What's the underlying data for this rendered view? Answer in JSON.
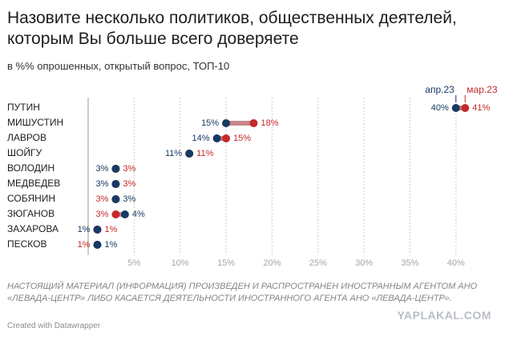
{
  "title": "Назовите несколько политиков, общественных деятелей, которым Вы больше всего доверяете",
  "subtitle": "в %% опрошенных, открытый вопрос, ТОП-10",
  "note": "НАСТОЯЩИЙ МАТЕРИАЛ (ИНФОРМАЦИЯ) ПРОИЗВЕДЕН И РАСПРОСТРАНЕН ИНОСТРАННЫМ АГЕНТОМ АНО «ЛЕВАДА-ЦЕНТР» ЛИБО КАСАЕТСЯ ДЕЯТЕЛЬНОСТИ ИНОСТРАННОГО АГЕНТА АНО «ЛЕВАДА-ЦЕНТР».",
  "credit": "Created with Datawrapper",
  "watermark": "YAPLAKAL.COM",
  "colors": {
    "apr": "#163a63",
    "mar": "#c42a2a",
    "connector": "#c9858b",
    "grid": "#cfcfcf",
    "tick_text": "#a6a6a6"
  },
  "chart_data": {
    "type": "scatter",
    "subtype": "dot-range",
    "categories": [
      "ПУТИН",
      "МИШУСТИН",
      "ЛАВРОВ",
      "ШОЙГУ",
      "ВОЛОДИН",
      "МЕДВЕДЕВ",
      "СОБЯНИН",
      "ЗЮГАНОВ",
      "ЗАХАРОВА",
      "ПЕСКОВ"
    ],
    "series": [
      {
        "name": "апр.23",
        "values": [
          40,
          15,
          14,
          11,
          3,
          3,
          3,
          4,
          1,
          1
        ]
      },
      {
        "name": "мар.23",
        "values": [
          41,
          18,
          15,
          11,
          3,
          3,
          3,
          3,
          1,
          1
        ]
      }
    ],
    "value_labels": {
      "апр.23": [
        "40%",
        "15%",
        "14%",
        "11%",
        "3%",
        "3%",
        "3%",
        "4%",
        "1%",
        "1%"
      ],
      "мар.23": [
        "41%",
        "18%",
        "15%",
        "11%",
        "3%",
        "3%",
        "3%",
        "3%",
        "1%",
        "1%"
      ]
    },
    "x_ticks": [
      5,
      10,
      15,
      20,
      25,
      30,
      35,
      40
    ],
    "x_tick_labels": [
      "5%",
      "10%",
      "15%",
      "20%",
      "25%",
      "30%",
      "35%",
      "40%"
    ],
    "xlim": [
      0,
      42
    ],
    "grid": true,
    "legend_position": "top-right"
  }
}
